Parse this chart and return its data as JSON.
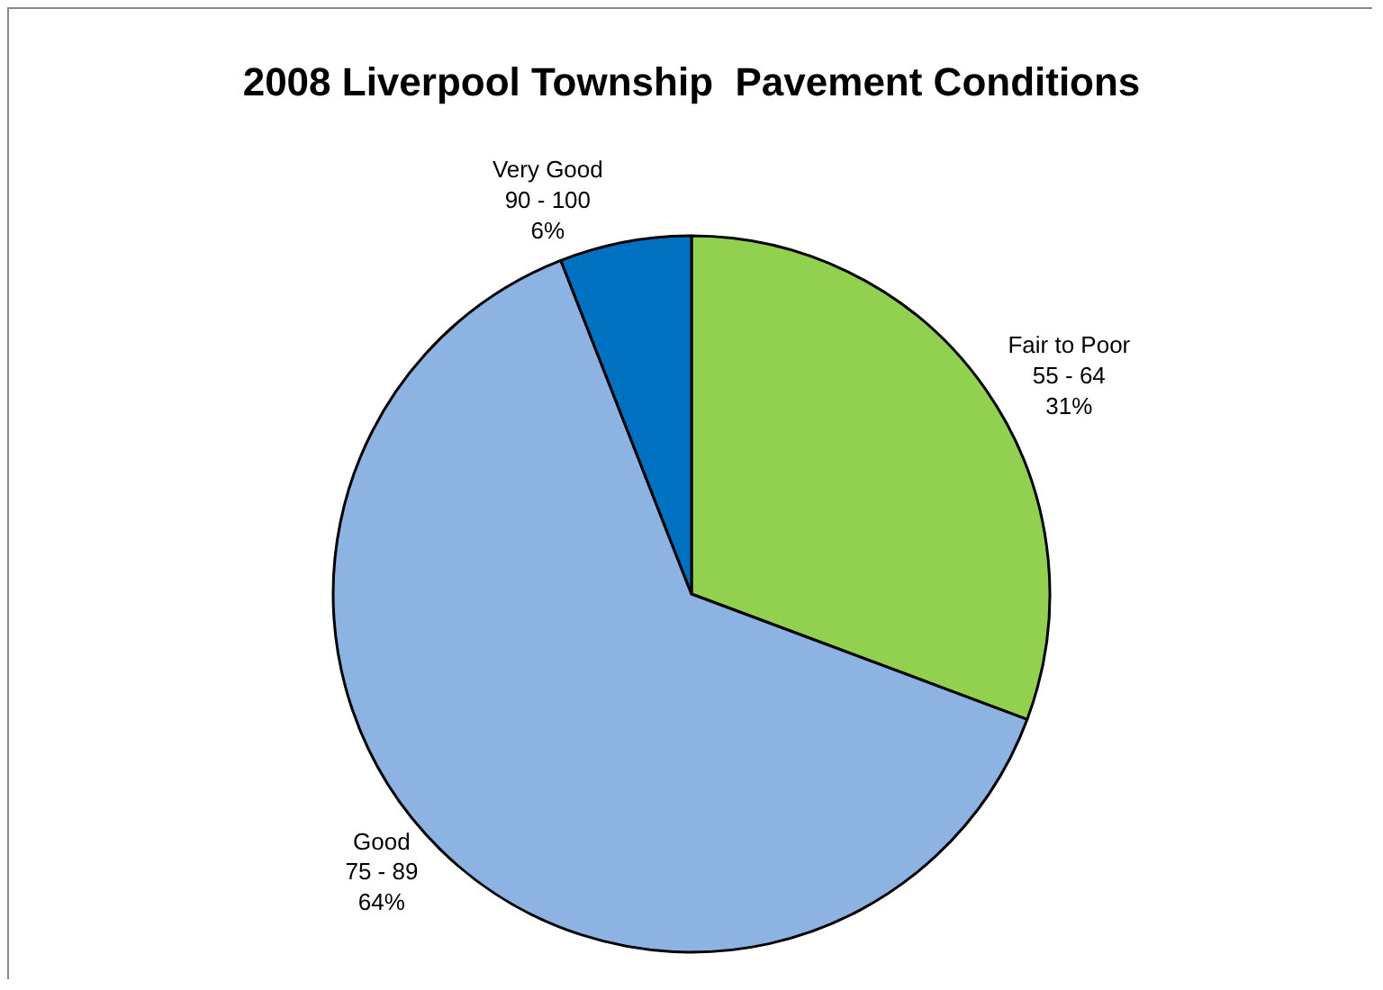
{
  "chart_data": {
    "type": "pie",
    "title": "2008 Liverpool Township  Pavement Conditions",
    "categories": [
      "Fair to Poor\n55 - 64",
      "Good\n75 - 89",
      "Very Good\n90 - 100"
    ],
    "values": [
      31,
      64,
      6
    ],
    "value_labels": [
      "31%",
      "64%",
      "6%"
    ],
    "colors": [
      "#92d050",
      "#8db3e2",
      "#0070c0"
    ],
    "legend": false
  }
}
